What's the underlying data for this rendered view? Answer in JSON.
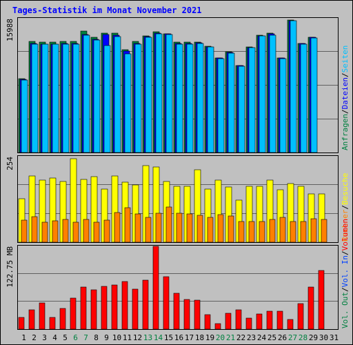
{
  "title": "Tages-Statistik im Monat November 2021",
  "colors": {
    "background": "#c0c0c0",
    "frame": "#000000",
    "title": "#0000ff",
    "gridline": "#000000",
    "anfragen": "#008040",
    "dateien": "#0000ff",
    "seiten": "#00c0ff",
    "besuche": "#ffff00",
    "rechner": "#ff8000",
    "volumen": "#ff0000",
    "volumen_in": "#0040ff",
    "volumen_out": "#008040",
    "day_weekday": "#000000",
    "day_weekend": "#008040"
  },
  "chart_data": [
    {
      "type": "bar",
      "panel": "hits",
      "y_label": "15988",
      "ylim": [
        0,
        15988
      ],
      "categories": [
        "1",
        "2",
        "3",
        "4",
        "5",
        "6",
        "7",
        "8",
        "9",
        "10",
        "11",
        "12",
        "13",
        "14",
        "15",
        "16",
        "17",
        "18",
        "19",
        "20",
        "21",
        "22",
        "23",
        "24",
        "25",
        "26",
        "27",
        "28",
        "29",
        "30",
        "31"
      ],
      "series": [
        {
          "name": "Anfragen",
          "values": [
            8800,
            13250,
            13150,
            13150,
            13250,
            13250,
            14500,
            13750,
            14250,
            14250,
            12300,
            13250,
            13900,
            14400,
            14200,
            13150,
            13150,
            13150,
            12700,
            11300,
            12000,
            10400,
            12600,
            14050,
            14250,
            11300,
            15800,
            13050,
            13800,
            null,
            null
          ]
        },
        {
          "name": "Dateien",
          "values": [
            8700,
            13050,
            12950,
            12950,
            13050,
            13050,
            14100,
            13550,
            14100,
            14050,
            12100,
            13050,
            13850,
            14250,
            14150,
            13050,
            13050,
            13100,
            12650,
            11250,
            11950,
            10350,
            12550,
            13950,
            14150,
            11250,
            15750,
            13000,
            13750,
            null,
            null
          ]
        },
        {
          "name": "Seiten",
          "values": [
            8650,
            12950,
            12900,
            12900,
            12950,
            12950,
            14000,
            13450,
            12800,
            13850,
            11800,
            12950,
            13800,
            14150,
            14100,
            12950,
            12950,
            13050,
            12600,
            11200,
            11900,
            10300,
            12500,
            13900,
            14050,
            11200,
            15700,
            12950,
            13700,
            null,
            null
          ]
        }
      ]
    },
    {
      "type": "bar",
      "panel": "visits",
      "y_label": "254",
      "ylim": [
        0,
        254
      ],
      "categories": [
        "1",
        "2",
        "3",
        "4",
        "5",
        "6",
        "7",
        "8",
        "9",
        "10",
        "11",
        "12",
        "13",
        "14",
        "15",
        "16",
        "17",
        "18",
        "19",
        "20",
        "21",
        "22",
        "23",
        "24",
        "25",
        "26",
        "27",
        "28",
        "29",
        "30",
        "31"
      ],
      "series": [
        {
          "name": "Besuche",
          "values": [
            130,
            196,
            184,
            190,
            181,
            248,
            186,
            194,
            157,
            197,
            178,
            170,
            228,
            223,
            181,
            165,
            165,
            216,
            158,
            184,
            163,
            125,
            166,
            166,
            184,
            156,
            174,
            166,
            143,
            143,
            null
          ]
        },
        {
          "name": "Rechner",
          "values": [
            65,
            75,
            60,
            63,
            67,
            60,
            68,
            60,
            65,
            89,
            103,
            83,
            73,
            87,
            104,
            86,
            85,
            80,
            73,
            81,
            78,
            62,
            62,
            62,
            67,
            74,
            62,
            62,
            70,
            68,
            null
          ]
        }
      ]
    },
    {
      "type": "bar",
      "panel": "volume",
      "y_label": "122.75 MB",
      "ylim": [
        0,
        122.75
      ],
      "categories": [
        "1",
        "2",
        "3",
        "4",
        "5",
        "6",
        "7",
        "8",
        "9",
        "10",
        "11",
        "12",
        "13",
        "14",
        "15",
        "16",
        "17",
        "18",
        "19",
        "20",
        "21",
        "22",
        "23",
        "24",
        "25",
        "26",
        "27",
        "28",
        "29",
        "30",
        "31"
      ],
      "series": [
        {
          "name": "Volumen",
          "values": [
            17,
            29,
            39,
            17,
            31,
            46,
            62,
            58,
            63,
            65,
            71,
            59,
            73,
            122.75,
            78,
            53,
            44,
            43,
            21,
            8,
            24,
            29,
            16,
            23,
            27,
            27,
            14,
            38,
            62,
            87,
            null
          ]
        }
      ]
    }
  ],
  "legend": {
    "hits": [
      {
        "label": "Anfragen",
        "color_key": "anfragen"
      },
      {
        "label": "/",
        "color_key": "frame"
      },
      {
        "label": "Dateien",
        "color_key": "dateien"
      },
      {
        "label": "/",
        "color_key": "frame"
      },
      {
        "label": "Seiten",
        "color_key": "seiten"
      }
    ],
    "visits": [
      {
        "label": "Rechner",
        "color_key": "rechner"
      },
      {
        "label": "/",
        "color_key": "frame"
      },
      {
        "label": "Besuche",
        "color_key": "besuche"
      }
    ],
    "volume": [
      {
        "label": "Vol. Out",
        "color_key": "volumen_out"
      },
      {
        "label": "/",
        "color_key": "frame"
      },
      {
        "label": "Vol. In",
        "color_key": "volumen_in"
      },
      {
        "label": "/",
        "color_key": "frame"
      },
      {
        "label": "Volumen",
        "color_key": "volumen"
      }
    ]
  },
  "weekend_days": [
    6,
    7,
    13,
    14,
    20,
    21,
    27,
    28
  ]
}
